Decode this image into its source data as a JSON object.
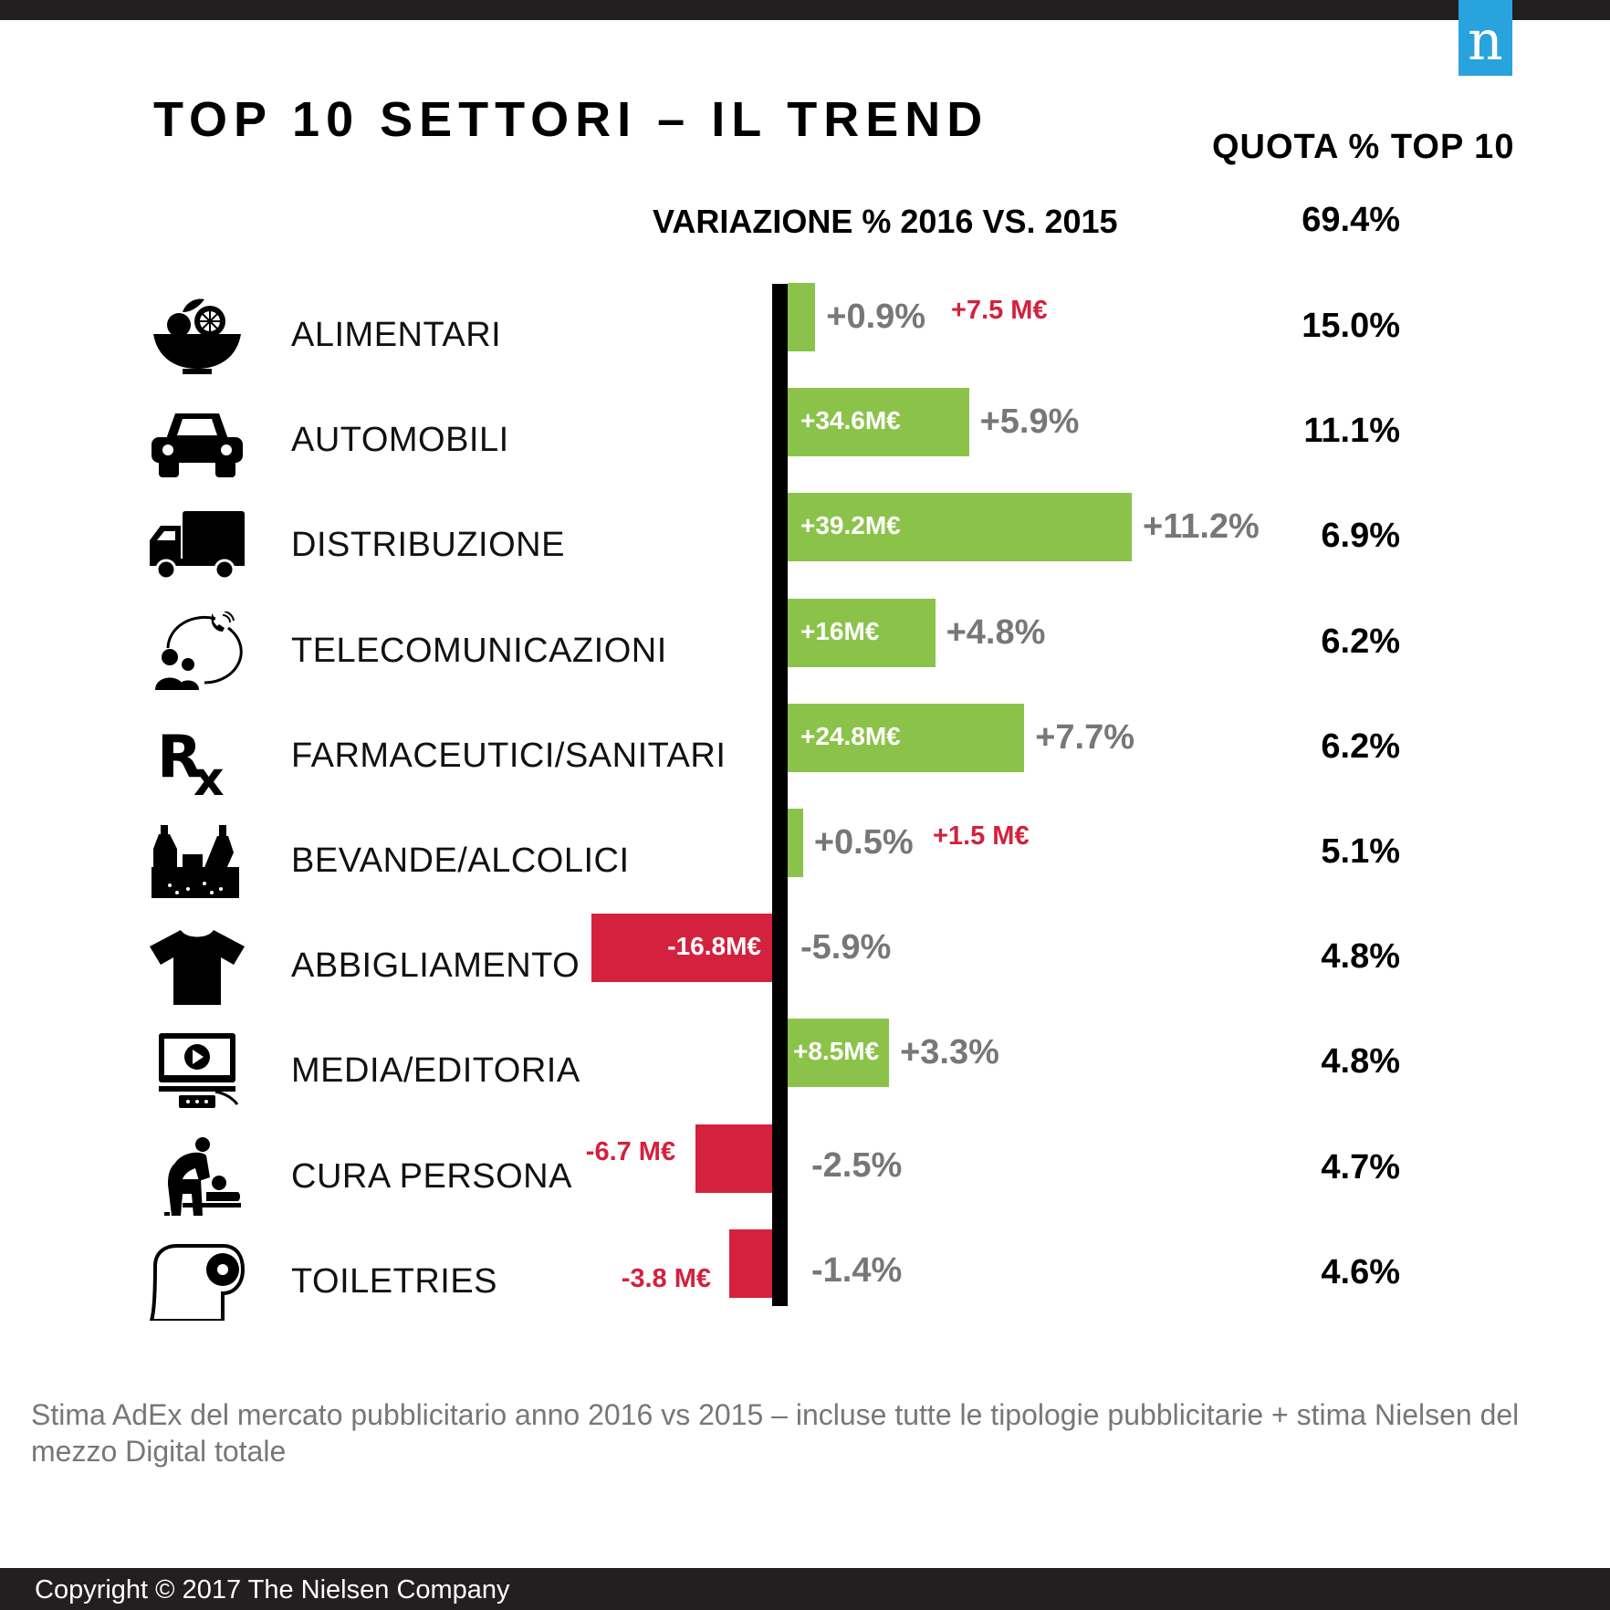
{
  "brand": {
    "logo_letter": "n",
    "logo_color": "#29a3dd"
  },
  "title": "TOP 10 SETTORI – IL TREND",
  "quota_header": "QUOTA % TOP 10",
  "variation_header": "VARIAZIONE % 2016 VS. 2015",
  "total_share": "69.4%",
  "colors": {
    "positive": "#8bc34a",
    "negative": "#d4213d",
    "percent_text": "#777777",
    "axis": "#000000"
  },
  "chart_data": {
    "type": "bar",
    "orientation": "horizontal",
    "title": "TOP 10 SETTORI – IL TREND",
    "categories": [
      "ALIMENTARI",
      "AUTOMOBILI",
      "DISTRIBUZIONE",
      "TELECOMUNICAZIONI",
      "FARMACEUTICI/SANITARI",
      "BEVANDE/ALCOLICI",
      "ABBIGLIAMENTO",
      "MEDIA/EDITORIA",
      "CURA PERSONA",
      "TOILETRIES"
    ],
    "series": [
      {
        "name": "VARIAZIONE % 2016 VS. 2015",
        "values": [
          0.9,
          5.9,
          11.2,
          4.8,
          7.7,
          0.5,
          -5.9,
          3.3,
          -2.5,
          -1.4
        ]
      },
      {
        "name": "QUOTA % TOP 10",
        "values": [
          15.0,
          11.1,
          6.9,
          6.2,
          6.2,
          5.1,
          4.8,
          4.8,
          4.7,
          4.6
        ]
      }
    ],
    "amounts_meur": [
      7.5,
      34.6,
      39.2,
      16,
      24.8,
      1.5,
      -16.8,
      8.5,
      -6.7,
      -3.8
    ]
  },
  "rows": [
    {
      "icon": "salad-bowl-icon",
      "name": "ALIMENTARI",
      "pct": "+0.9%",
      "amount": "+7.5 M€",
      "share": "15.0%"
    },
    {
      "icon": "car-icon",
      "name": "AUTOMOBILI",
      "pct": "+5.9%",
      "amount": "+34.6M€",
      "share": "11.1%"
    },
    {
      "icon": "truck-icon",
      "name": "DISTRIBUZIONE",
      "pct": "+11.2%",
      "amount": "+39.2M€",
      "share": "6.9%"
    },
    {
      "icon": "telecom-people-icon",
      "name": "TELECOMUNICAZIONI",
      "pct": "+4.8%",
      "amount": "+16M€",
      "share": "6.2%"
    },
    {
      "icon": "rx-icon",
      "name": "FARMACEUTICI/SANITARI",
      "pct": "+7.7%",
      "amount": "+24.8M€",
      "share": "6.2%"
    },
    {
      "icon": "bottles-crate-icon",
      "name": "BEVANDE/ALCOLICI",
      "pct": "+0.5%",
      "amount": "+1.5 M€",
      "share": "5.1%"
    },
    {
      "icon": "tshirt-icon",
      "name": "ABBIGLIAMENTO",
      "pct": "-5.9%",
      "amount": "-16.8M€",
      "share": "4.8%"
    },
    {
      "icon": "video-monitor-icon",
      "name": "MEDIA/EDITORIA",
      "pct": "+3.3%",
      "amount": "+8.5M€",
      "share": "4.8%"
    },
    {
      "icon": "baby-changing-icon",
      "name": "CURA PERSONA",
      "pct": "-2.5%",
      "amount": "-6.7 M€",
      "share": "4.7%"
    },
    {
      "icon": "toilet-paper-icon",
      "name": "TOILETRIES",
      "pct": "-1.4%",
      "amount": "-3.8 M€",
      "share": "4.6%"
    }
  ],
  "note": "Stima AdEx del mercato pubblicitario anno 2016 vs 2015 – incluse tutte le tipologie pubblicitarie + stima Nielsen del mezzo Digital totale",
  "copyright": "Copyright © 2017 The Nielsen Company"
}
